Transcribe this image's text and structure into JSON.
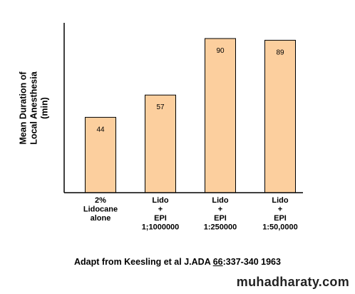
{
  "chart_data": {
    "type": "bar",
    "categories": [
      [
        "2%",
        "Lidocane",
        "alone"
      ],
      [
        "Lido",
        "+",
        "EPI",
        "1;1000000"
      ],
      [
        "Lido",
        "+",
        "EPI",
        "1:250000"
      ],
      [
        "Lido",
        "+",
        "EPI",
        "1:50,0000"
      ]
    ],
    "values": [
      44,
      57,
      90,
      89
    ],
    "data_labels": [
      "44",
      "57",
      "90",
      "89"
    ],
    "ylabel_lines": [
      "Mean Duration of",
      "Local Anesthesia",
      "(min)"
    ],
    "ylim": [
      0,
      100
    ],
    "grid": false,
    "legend": "none",
    "bar_color": "#fccf9e",
    "bar_edge_color": "#000000"
  },
  "caption": {
    "prefix": "Adapt from Keesling et al J.ADA ",
    "volume": "66",
    "suffix": ":337-340 1963"
  },
  "watermark": "muhadharaty.com"
}
